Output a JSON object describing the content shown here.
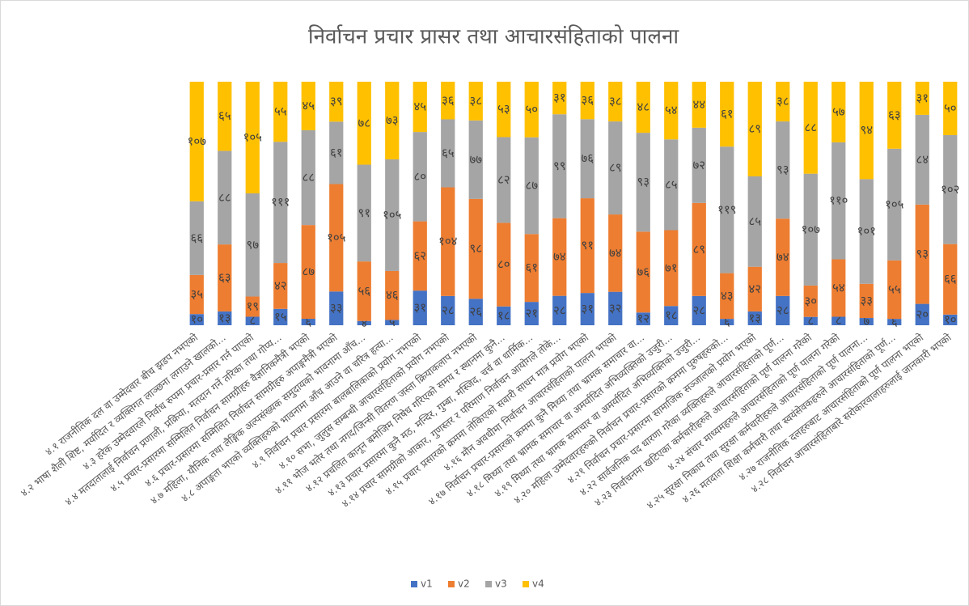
{
  "chart_data": {
    "type": "stacked_percent_bar",
    "title": "निर्वाचन प्रचार प्रासर तथा आचारसंहिताको पालना",
    "categories": [
      "४.१ राजनीतिक दल वा उम्मेदवार बीच झडप नभएको",
      "४.२ भाषा शैली शिष्ट, मर्यादित र व्यक्तिगत लाञ्छना लगाउने खालको...",
      "४.३ हरेक उम्मेदवारले निर्वाध रुपमा प्रचार-प्रसार गर्न पाएको",
      "४.४ मतदातालाई निर्वाचन प्रणाली, प्रक्रिया, मतदान गर्ने तरिका तथा गोप्य...",
      "४.५ प्रचार-प्रसारमा सम्मिलित निर्वाचन सामग्रीहरु वैज्ञानिकमैत्री भएको",
      "४.६ प्रचार-प्रसारमा सम्मिलित निर्वाचन सामग्रीहरु अपाङ्गमैत्री भएको",
      "४.७ महिला, यौनिक तथा लैङ्गिक अल्पसंख्यक समुदायको भावनामा आँच...",
      "४.८ अपाङ्गता भएको व्यक्तिहरुको भावनामा आँच आउने वा चरित्र हत्या...",
      "४.९ निर्वाचन प्रचार प्रसारमा बालबालिकाको प्रयोग नभएको",
      "४.१० सभा, जुलुस सम्बन्धी आचारसंहिताको प्रयोग नभएको",
      "४.११ भोज भतेर तथा नगद/जिन्सी वितरण जस्ता क्रियाकलाप नभएको",
      "४.१२ प्रचलित कानून बमोजिम निषेध गरिएको समय र स्थानमा कुनै...",
      "४.१३ प्रचार प्रसारमा कुनै मठ, मन्दिर, गुम्बा, मस्जिद, चर्च वा धार्मिक...",
      "४.१४ प्रचार सामग्रीको आकार, गुणस्तर र परिमाण निर्वाचन आयोगले तोके...",
      "४.१५ प्रचार प्रसारको क्रममा तोकिएको सवारी साधन मात्र प्रयोग भएको",
      "४.१६ मौन अवधीमा निर्वाचन आचारसंहिताको पालना भएको",
      "४.१७ निर्वाचन प्रचार-प्रसारको क्रममा कुनै मिथ्या तथा भ्रामक समाचार वा...",
      "४.१८ मिथ्या तथा भ्रामक समाचार वा अमर्यादित अभिव्यक्तिको उजुरी...",
      "४.१९ मिथ्या तथा भ्रामक समाचार वा अमर्यादित अभिव्यक्तिको उजुरी...",
      "४.२० महिला उम्मेदवारहरुको निर्वाचन प्रचार-प्रसारको क्रममा पुरुषहरुको...",
      "४.२१ निर्वाचन प्रचार-प्रसारमा सामाजिक सञ्जालको प्रयोग भएको",
      "४.२२ सार्वजनिक पद धारणा गरेका व्यक्तिहरुले आचारसंहिताको पूर्ण...",
      "४.२३ निर्वाचनमा खटिएका कर्मचारीहरुले आचारसंहिताको पूर्ण पालना गरेको",
      "४.२४ संचार माध्यमहरुले आचारसंहिताको पूर्ण पालना गरेको",
      "४.२५ सुरक्षा निकाय तथा सुरक्षा कर्मचारीहरुले आचारसंहिताको पूर्ण पालना...",
      "४.२६ मतदाता शिक्षा कर्मचारी तथा स्वयंसेवकहरुले आचारसंहिताको पूर्ण...",
      "४.२७ राजनीतिक दलहरुबाट आचारसंहिताको पूर्ण पालना भएको",
      "४.२८ निर्वाचन आचारसंहिताबारे सरोकारवालाहरुलाई जानकारी भएको"
    ],
    "series": [
      {
        "name": "v1",
        "color": "#4472c4",
        "values": [
          10,
          13,
          8,
          15,
          6,
          33,
          4,
          5,
          31,
          28,
          26,
          18,
          21,
          28,
          31,
          32,
          12,
          18,
          28,
          6,
          13,
          28,
          8,
          8,
          7,
          6,
          20,
          10
        ],
        "value_labels": [
          "१०",
          "१३",
          "८",
          "१५",
          "६",
          "३३",
          "४",
          "५",
          "३१",
          "२८",
          "२६",
          "१८",
          "२१",
          "२८",
          "३१",
          "३२",
          "१२",
          "१८",
          "२८",
          "६",
          "१३",
          "२८",
          "८",
          "८",
          "७",
          "६",
          "२०",
          "१०"
        ]
      },
      {
        "name": "v2",
        "color": "#ed7d31",
        "values": [
          35,
          63,
          19,
          42,
          87,
          105,
          56,
          46,
          62,
          104,
          98,
          80,
          61,
          74,
          91,
          74,
          76,
          71,
          89,
          43,
          42,
          74,
          30,
          54,
          33,
          55,
          93,
          66
        ],
        "value_labels": [
          "३५",
          "६३",
          "१९",
          "४२",
          "८७",
          "१०५",
          "५६",
          "४६",
          "६२",
          "१०४",
          "९८",
          "८०",
          "६१",
          "७४",
          "९१",
          "७४",
          "७६",
          "७१",
          "८९",
          "४३",
          "४२",
          "७४",
          "३०",
          "५४",
          "३३",
          "५५",
          "९३",
          "६६"
        ]
      },
      {
        "name": "v3",
        "color": "#a5a5a5",
        "values": [
          66,
          88,
          97,
          111,
          88,
          61,
          91,
          105,
          80,
          65,
          77,
          82,
          87,
          99,
          76,
          89,
          93,
          85,
          72,
          119,
          85,
          93,
          107,
          110,
          101,
          105,
          84,
          102
        ],
        "value_labels": [
          "६६",
          "८८",
          "९७",
          "१११",
          "८८",
          "६१",
          "९१",
          "१०५",
          "८०",
          "६५",
          "७७",
          "८२",
          "८७",
          "९९",
          "७६",
          "८९",
          "९३",
          "८५",
          "७२",
          "११९",
          "८५",
          "९३",
          "१०७",
          "११०",
          "१०१",
          "१०५",
          "८४",
          "१०२"
        ]
      },
      {
        "name": "v4",
        "color": "#ffc000",
        "values": [
          107,
          65,
          105,
          55,
          45,
          39,
          78,
          73,
          45,
          36,
          38,
          53,
          50,
          31,
          36,
          38,
          48,
          54,
          44,
          61,
          89,
          38,
          88,
          57,
          94,
          63,
          31,
          50
        ],
        "value_labels": [
          "१०७",
          "६५",
          "१०५",
          "५५",
          "४५",
          "३९",
          "७८",
          "७३",
          "४५",
          "३६",
          "३८",
          "५३",
          "५०",
          "३१",
          "३६",
          "३८",
          "४८",
          "५४",
          "४४",
          "६१",
          "८९",
          "३८",
          "८८",
          "५७",
          "९४",
          "६३",
          "३१",
          "५०"
        ]
      }
    ],
    "legend": "bottom"
  }
}
